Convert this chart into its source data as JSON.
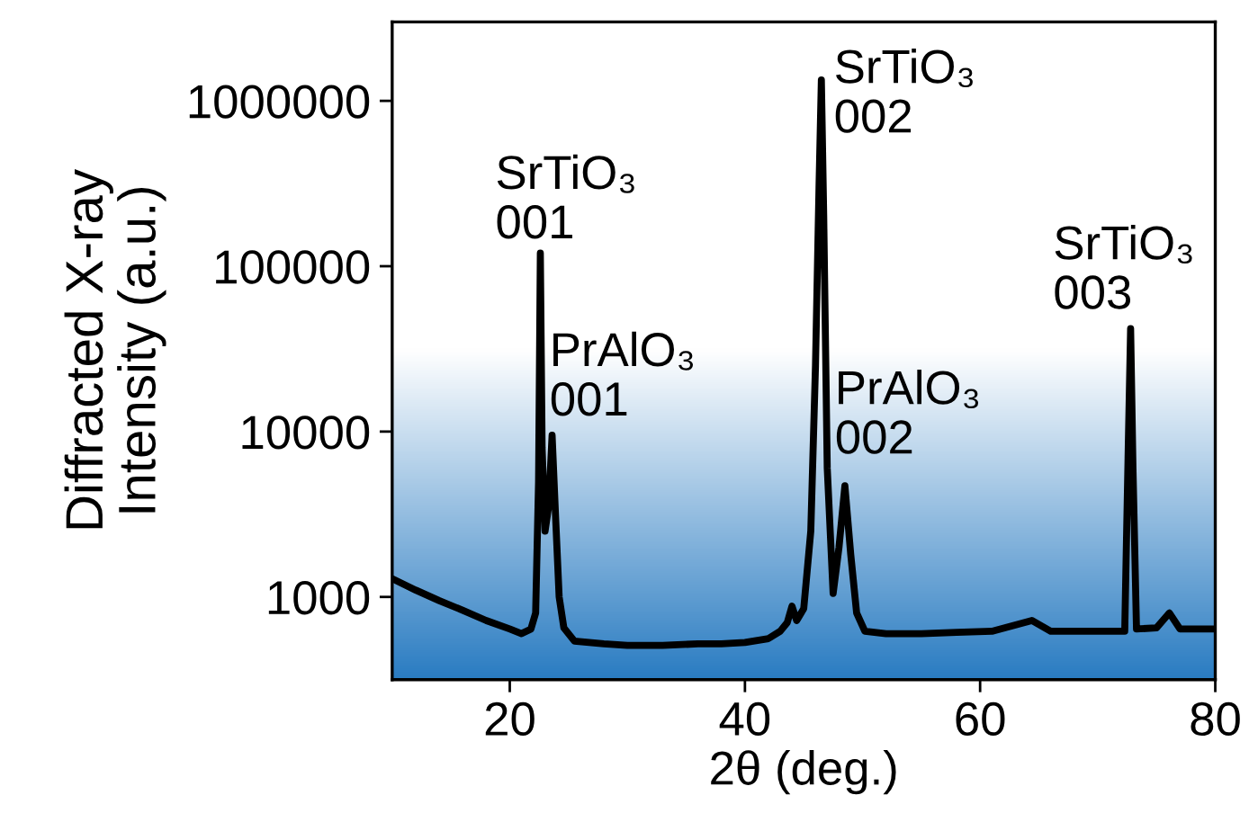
{
  "chart_data": {
    "type": "line",
    "xlabel": "2θ (deg.)",
    "ylabel": "Diffracted X-ray\nIntensity (a.u.)",
    "series": [
      {
        "color": "#000000",
        "x": [
          10,
          12,
          14,
          16,
          18,
          20,
          21,
          21.8,
          22.2,
          22.45,
          22.6,
          22.75,
          23.0,
          23.3,
          23.6,
          23.9,
          24.2,
          24.6,
          25.5,
          28,
          30,
          33,
          36,
          38,
          40,
          42,
          43,
          43.6,
          44.0,
          44.4,
          45,
          45.6,
          46.0,
          46.3,
          46.5,
          46.7,
          47.0,
          47.5,
          48.0,
          48.5,
          49.0,
          49.5,
          50.2,
          52,
          55,
          58,
          61,
          64.4,
          66,
          70,
          72.3,
          72.6,
          72.8,
          73.0,
          73.3,
          75,
          76.1,
          77,
          80
        ],
        "values": [
          1290,
          1100,
          950,
          830,
          720,
          640,
          600,
          640,
          800,
          5000,
          120000,
          8000,
          2500,
          3500,
          9500,
          3000,
          1000,
          650,
          540,
          520,
          510,
          510,
          520,
          520,
          530,
          560,
          620,
          700,
          880,
          720,
          850,
          2500,
          25000,
          300000,
          1340000,
          200000,
          6000,
          1050,
          2000,
          4700,
          1800,
          800,
          620,
          600,
          600,
          610,
          620,
          720,
          620,
          620,
          620,
          8000,
          42000,
          6000,
          640,
          650,
          800,
          640,
          640
        ],
        "line_style": "solid"
      }
    ],
    "xlim": [
      10,
      80
    ],
    "xticks": [
      20,
      40,
      60,
      80
    ],
    "ylim": [
      316,
      3000000
    ],
    "yticks": [
      1000,
      10000,
      100000,
      1000000
    ],
    "log": true,
    "grid": false,
    "legend": false,
    "annotations": [
      {
        "text": "SrTiO₃\n001",
        "x": 22.6,
        "y": 120000
      },
      {
        "text": "PrAlO₃\n001",
        "x": 23.6,
        "y": 9500
      },
      {
        "text": "SrTiO₃\n002",
        "x": 46.5,
        "y": 1340000
      },
      {
        "text": "PrAlO₃\n002",
        "x": 48.5,
        "y": 4700
      },
      {
        "text": "SrTiO₃\n003",
        "x": 72.8,
        "y": 42000
      }
    ]
  }
}
